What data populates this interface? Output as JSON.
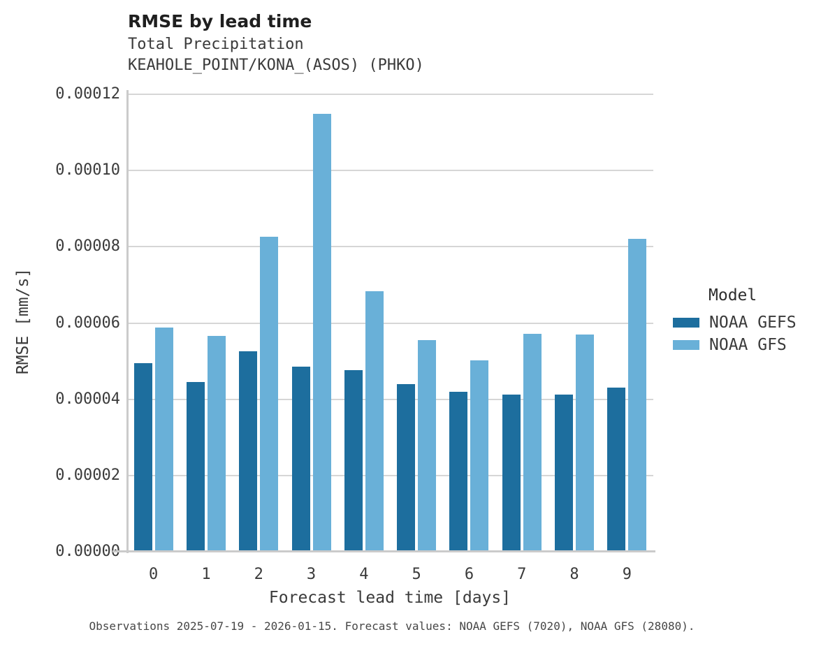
{
  "header": {
    "title": "RMSE by lead time",
    "subtitle_line1": "Total Precipitation",
    "subtitle_line2": "KEAHOLE_POINT/KONA_(ASOS) (PHKO)"
  },
  "footer": {
    "caption": "Observations 2025-07-19 - 2026-01-15. Forecast values: NOAA GEFS (7020), NOAA GFS (28080)."
  },
  "colors": {
    "gefs_dark_blue": "#1d6e9e",
    "gfs_light_blue": "#69b0d8",
    "gridline_gray": "#d6d6d6",
    "axis_spine_gray": "#cbcbcb"
  },
  "chart_data": {
    "type": "bar",
    "title": "RMSE by lead time",
    "subtitle_lines": [
      "Total Precipitation",
      "KEAHOLE_POINT/KONA_(ASOS) (PHKO)"
    ],
    "categories": [
      "0",
      "1",
      "2",
      "3",
      "4",
      "5",
      "6",
      "7",
      "8",
      "9"
    ],
    "series": [
      {
        "name": "NOAA GEFS",
        "color": "#1d6e9e",
        "values": [
          4.95e-05,
          4.45e-05,
          5.26e-05,
          4.85e-05,
          4.76e-05,
          4.4e-05,
          4.19e-05,
          4.12e-05,
          4.12e-05,
          4.3e-05
        ]
      },
      {
        "name": "NOAA GFS",
        "color": "#69b0d8",
        "values": [
          5.88e-05,
          5.66e-05,
          8.26e-05,
          0.0001148,
          6.83e-05,
          5.55e-05,
          5.02e-05,
          5.71e-05,
          5.7e-05,
          8.2e-05
        ]
      }
    ],
    "xlabel": "Forecast lead time [days]",
    "ylabel": "RMSE [mm/s]",
    "ylim": [
      0,
      0.00012
    ],
    "yticks": [
      0,
      2e-05,
      4e-05,
      6e-05,
      8e-05,
      0.0001,
      0.00012
    ],
    "ytick_labels": [
      "0.00000",
      "0.00002",
      "0.00004",
      "0.00006",
      "0.00008",
      "0.00010",
      "0.00012"
    ],
    "grid": true,
    "legend_title": "Model",
    "legend_position": "right",
    "caption": "Observations 2025-07-19 - 2026-01-15. Forecast values: NOAA GEFS (7020), NOAA GFS (28080)."
  }
}
